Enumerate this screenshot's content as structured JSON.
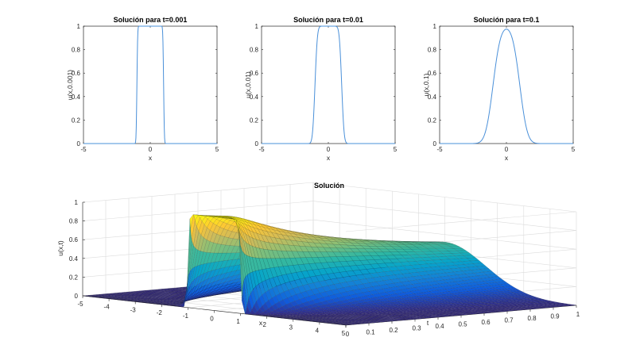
{
  "chart_data": [
    {
      "type": "line",
      "title": "Solución para t=0.001",
      "xlabel": "x",
      "ylabel": "u(x,0.001)",
      "xlim": [
        -5,
        5
      ],
      "ylim": [
        0,
        1
      ],
      "xticks": [
        "-5",
        "0",
        "5"
      ],
      "yticks": [
        "0",
        "0.2",
        "0.4",
        "0.6",
        "0.8",
        "1"
      ],
      "t": 0.001,
      "series": [
        {
          "name": "u(x,0.001)",
          "color": "#4a90d9",
          "profile": "box-filtered",
          "half_width": 1
        }
      ]
    },
    {
      "type": "line",
      "title": "Solución para t=0.01",
      "xlabel": "x",
      "ylabel": "u(x,0.01)",
      "xlim": [
        -5,
        5
      ],
      "ylim": [
        0,
        1
      ],
      "xticks": [
        "-5",
        "0",
        "5"
      ],
      "yticks": [
        "0",
        "0.2",
        "0.4",
        "0.6",
        "0.8",
        "1"
      ],
      "t": 0.01,
      "series": [
        {
          "name": "u(x,0.01)",
          "color": "#4a90d9",
          "profile": "box-filtered",
          "half_width": 1
        }
      ]
    },
    {
      "type": "line",
      "title": "Solución para t=0.1",
      "xlabel": "x",
      "ylabel": "u(x,0.1)",
      "xlim": [
        -5,
        5
      ],
      "ylim": [
        0,
        1
      ],
      "xticks": [
        "-5",
        "0",
        "5"
      ],
      "yticks": [
        "0",
        "0.2",
        "0.4",
        "0.6",
        "0.8",
        "1"
      ],
      "t": 0.1,
      "series": [
        {
          "name": "u(x,0.1)",
          "color": "#4a90d9",
          "profile": "box-filtered",
          "half_width": 1
        }
      ]
    },
    {
      "type": "surface",
      "title": "Solución",
      "xlabel": "x",
      "ylabel": "t",
      "zlabel": "u(x,t)",
      "xlim": [
        -5,
        5
      ],
      "ylim": [
        0,
        1
      ],
      "zlim": [
        0,
        1
      ],
      "xticks": [
        "-5",
        "-4",
        "-3",
        "-2",
        "-1",
        "0",
        "1",
        "2",
        "3",
        "4",
        "5"
      ],
      "yticks": [
        "0",
        "0.1",
        "0.2",
        "0.3",
        "0.4",
        "0.5",
        "0.6",
        "0.7",
        "0.8",
        "0.9",
        "1"
      ],
      "zticks": [
        "0",
        "0.2",
        "0.4",
        "0.6",
        "0.8",
        "1"
      ],
      "colormap": "parula",
      "colors": [
        "#352a87",
        "#0f5cdd",
        "#1481d6",
        "#06a4ca",
        "#2eb7a4",
        "#87bf77",
        "#d1bb59",
        "#fec832",
        "#f9fb0e"
      ],
      "profile": "box-filtered",
      "half_width": 1,
      "mesh_x": 81,
      "mesh_t": 41
    }
  ]
}
